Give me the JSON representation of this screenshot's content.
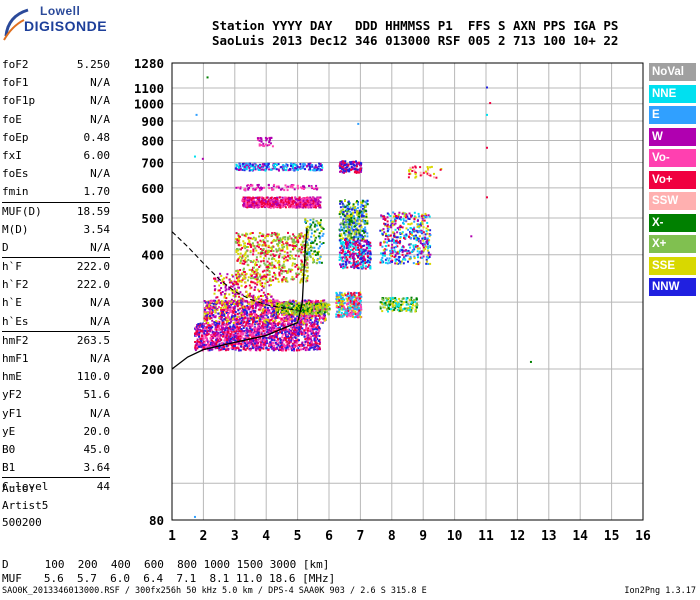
{
  "logo": {
    "line1": "Lowell",
    "line2": "DIGISONDE"
  },
  "header": {
    "line1": "Station YYYY DAY   DDD HHMMSS P1  FFS S AXN PPS IGA PS",
    "line2": "SaoLuis 2013 Dec12 346 013000 RSF 005 2 713 100 10+ 22"
  },
  "params": {
    "group1": [
      {
        "k": "foF2",
        "v": "5.250"
      },
      {
        "k": "foF1",
        "v": "N/A"
      },
      {
        "k": "foF1p",
        "v": "N/A"
      },
      {
        "k": "foE",
        "v": "N/A"
      },
      {
        "k": "foEp",
        "v": "0.48"
      },
      {
        "k": "fxI",
        "v": "6.00"
      },
      {
        "k": "foEs",
        "v": "N/A"
      },
      {
        "k": "fmin",
        "v": "1.70"
      }
    ],
    "group2": [
      {
        "k": "MUF(D)",
        "v": "18.59"
      },
      {
        "k": "M(D)",
        "v": "3.54"
      },
      {
        "k": "D",
        "v": "N/A"
      }
    ],
    "group3": [
      {
        "k": "h`F",
        "v": "222.0"
      },
      {
        "k": "h`F2",
        "v": "222.0"
      },
      {
        "k": "h`E",
        "v": "N/A"
      },
      {
        "k": "h`Es",
        "v": "N/A"
      }
    ],
    "group4": [
      {
        "k": "hmF2",
        "v": "263.5"
      },
      {
        "k": "hmF1",
        "v": "N/A"
      },
      {
        "k": "hmE",
        "v": "110.0"
      },
      {
        "k": "yF2",
        "v": "51.6"
      },
      {
        "k": "yF1",
        "v": "N/A"
      },
      {
        "k": "yE",
        "v": "20.0"
      },
      {
        "k": "B0",
        "v": "45.0"
      },
      {
        "k": "B1",
        "v": "3.64"
      }
    ],
    "group5": [
      {
        "k": "C-level",
        "v": "44"
      }
    ]
  },
  "auto": {
    "l1": "Auto:",
    "l2": "Artist5",
    "l3": "500200"
  },
  "legend": [
    {
      "label": "NoVal",
      "color": "#a0a0a0"
    },
    {
      "label": "NNE",
      "color": "#00e0f0"
    },
    {
      "label": "E",
      "color": "#30a0ff"
    },
    {
      "label": "W",
      "color": "#b000b0"
    },
    {
      "label": "Vo-",
      "color": "#ff40b0"
    },
    {
      "label": "Vo+",
      "color": "#f00040"
    },
    {
      "label": "SSW",
      "color": "#ffb0b0"
    },
    {
      "label": "X-",
      "color": "#008000"
    },
    {
      "label": "X+",
      "color": "#80c050"
    },
    {
      "label": "SSE",
      "color": "#d8d800"
    },
    {
      "label": "NNW",
      "color": "#2020e0"
    }
  ],
  "chart_data": {
    "type": "scatter",
    "xlim": [
      1,
      16
    ],
    "ylim_log": [
      80,
      1280
    ],
    "x_ticks": [
      "1",
      "2",
      "3",
      "4",
      "5",
      "6",
      "7",
      "8",
      "9",
      "10",
      "11",
      "12",
      "13",
      "14",
      "15",
      "16"
    ],
    "y_ticks": [
      {
        "v": 80,
        "label": "80"
      },
      {
        "v": 100,
        "label": ""
      },
      {
        "v": 200,
        "label": "200"
      },
      {
        "v": 300,
        "label": "300"
      },
      {
        "v": 400,
        "label": "400"
      },
      {
        "v": 500,
        "label": "500"
      },
      {
        "v": 600,
        "label": "600"
      },
      {
        "v": 700,
        "label": "700"
      },
      {
        "v": 800,
        "label": "800"
      },
      {
        "v": 900,
        "label": "900"
      },
      {
        "v": 1000,
        "label": "1000"
      },
      {
        "v": 1100,
        "label": "1100"
      },
      {
        "v": 1280,
        "label": "1280"
      }
    ],
    "grid": true,
    "profile_solid": [
      [
        1,
        200
      ],
      [
        1.5,
        215
      ],
      [
        2,
        225
      ],
      [
        3,
        235
      ],
      [
        4,
        245
      ],
      [
        4.5,
        255
      ],
      [
        5,
        265
      ],
      [
        5.15,
        300
      ],
      [
        5.2,
        360
      ],
      [
        5.25,
        420
      ],
      [
        5.3,
        470
      ]
    ],
    "profile_dashed": [
      [
        1,
        460
      ],
      [
        1.5,
        420
      ],
      [
        2,
        380
      ],
      [
        2.5,
        345
      ],
      [
        3,
        320
      ],
      [
        3.5,
        305
      ],
      [
        4,
        295
      ],
      [
        4.5,
        290
      ],
      [
        5,
        285
      ]
    ],
    "clusters": [
      {
        "x": [
          1.7,
          5.7
        ],
        "y": [
          225,
          265
        ],
        "colors": [
          "#f00040",
          "#ff40b0",
          "#b000b0",
          "#2020e0"
        ],
        "n": 1400
      },
      {
        "x": [
          2.0,
          5.9
        ],
        "y": [
          265,
          305
        ],
        "colors": [
          "#f00040",
          "#ff40b0",
          "#b000b0",
          "#d8d800",
          "#2020e0"
        ],
        "n": 1100
      },
      {
        "x": [
          4.3,
          6.0
        ],
        "y": [
          280,
          300
        ],
        "colors": [
          "#d8d800",
          "#80c050",
          "#008000"
        ],
        "n": 250
      },
      {
        "x": [
          2.3,
          4.2
        ],
        "y": [
          300,
          360
        ],
        "colors": [
          "#f00040",
          "#b000b0",
          "#d8d800"
        ],
        "n": 200
      },
      {
        "x": [
          3.0,
          5.3
        ],
        "y": [
          340,
          460
        ],
        "colors": [
          "#d8d800",
          "#80c050",
          "#f00040"
        ],
        "n": 600
      },
      {
        "x": [
          5.2,
          5.8
        ],
        "y": [
          380,
          500
        ],
        "colors": [
          "#d8d800",
          "#80c050",
          "#008000",
          "#30a0ff"
        ],
        "n": 120
      },
      {
        "x": [
          3.2,
          5.7
        ],
        "y": [
          535,
          570
        ],
        "colors": [
          "#b000b0",
          "#ff40b0",
          "#f00040"
        ],
        "n": 600
      },
      {
        "x": [
          3.0,
          5.6
        ],
        "y": [
          595,
          615
        ],
        "colors": [
          "#ff40b0",
          "#b000b0"
        ],
        "n": 80
      },
      {
        "x": [
          3.0,
          5.8
        ],
        "y": [
          670,
          700
        ],
        "colors": [
          "#2020e0",
          "#b000b0",
          "#30a0ff",
          "#00e0f0"
        ],
        "n": 250
      },
      {
        "x": [
          3.7,
          4.2
        ],
        "y": [
          770,
          820
        ],
        "colors": [
          "#b000b0",
          "#ff40b0"
        ],
        "n": 30
      },
      {
        "x": [
          6.3,
          7.0
        ],
        "y": [
          660,
          710
        ],
        "colors": [
          "#b000b0",
          "#2020e0",
          "#f00040"
        ],
        "n": 120
      },
      {
        "x": [
          6.3,
          7.2
        ],
        "y": [
          440,
          560
        ],
        "colors": [
          "#d8d800",
          "#80c050",
          "#008000",
          "#30a0ff",
          "#2020e0"
        ],
        "n": 350
      },
      {
        "x": [
          6.3,
          7.3
        ],
        "y": [
          370,
          440
        ],
        "colors": [
          "#f00040",
          "#b000b0",
          "#2020e0",
          "#00e0f0"
        ],
        "n": 300
      },
      {
        "x": [
          6.2,
          7.0
        ],
        "y": [
          275,
          320
        ],
        "colors": [
          "#f00040",
          "#ff40b0",
          "#00e0f0",
          "#30a0ff",
          "#d8d800"
        ],
        "n": 300
      },
      {
        "x": [
          7.6,
          9.2
        ],
        "y": [
          380,
          520
        ],
        "colors": [
          "#f00040",
          "#b000b0",
          "#2020e0",
          "#00e0f0",
          "#d8d800",
          "#30a0ff"
        ],
        "n": 450
      },
      {
        "x": [
          7.6,
          8.8
        ],
        "y": [
          285,
          310
        ],
        "colors": [
          "#80c050",
          "#00e0f0",
          "#d8d800",
          "#008000"
        ],
        "n": 150
      },
      {
        "x": [
          8.5,
          9.6
        ],
        "y": [
          640,
          690
        ],
        "colors": [
          "#ffb0b0",
          "#f00040",
          "#d8d800"
        ],
        "n": 40
      }
    ]
  },
  "footer": {
    "d_label": "D",
    "d_values": "100  200  400  600  800 1000 1500 3000 [km]",
    "muf_label": "MUF",
    "muf_values": "5.6  5.7  6.0  6.4  7.1  8.1 11.0 18.6 [MHz]"
  },
  "bottom": {
    "file": "SAO0K_2013346013000.RSF / 300fx256h 50 kHz 5.0 km / DPS-4 SAA0K 903 / 2.6 S 315.8 E",
    "version": "Ion2Png 1.3.17"
  }
}
